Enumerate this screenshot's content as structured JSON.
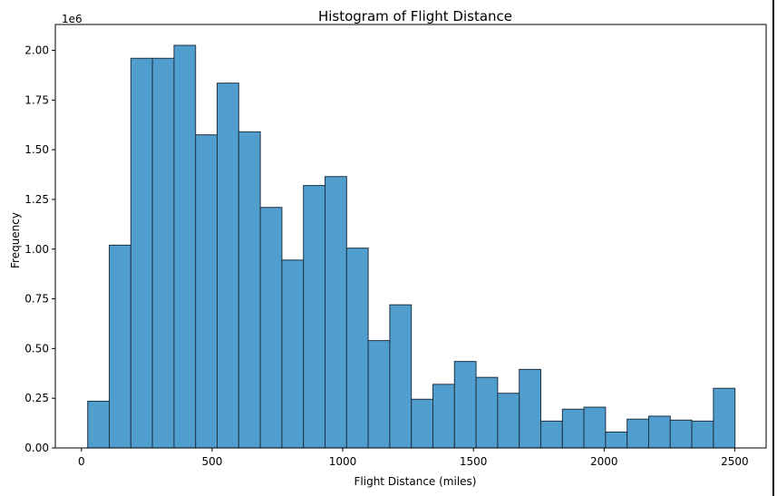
{
  "chart_data": {
    "type": "bar",
    "title": "Histogram of Flight Distance",
    "xlabel": "Flight Distance (miles)",
    "ylabel": "Frequency",
    "y_scale_label": "1e6",
    "xlim": [
      -100,
      2620
    ],
    "ylim": [
      0,
      2130000
    ],
    "x_ticks": [
      0,
      500,
      1000,
      1500,
      2000,
      2500
    ],
    "x_tick_labels": [
      "0",
      "500",
      "1000",
      "1500",
      "2000",
      "2500"
    ],
    "y_ticks": [
      0,
      250000,
      500000,
      750000,
      1000000,
      1250000,
      1500000,
      1750000,
      2000000
    ],
    "y_tick_labels": [
      "0.00",
      "0.25",
      "0.50",
      "0.75",
      "1.00",
      "1.25",
      "1.50",
      "1.75",
      "2.00"
    ],
    "bin_edges": [
      24,
      106.6,
      189.1,
      271.7,
      354.3,
      436.8,
      519.4,
      601.9,
      684.5,
      767.1,
      849.6,
      932.2,
      1014.8,
      1097.3,
      1179.9,
      1262.4,
      1345,
      1427.6,
      1510.1,
      1592.7,
      1675.3,
      1757.8,
      1840.4,
      1922.9,
      2005.5,
      2088.1,
      2170.6,
      2253.2,
      2335.7,
      2418.3,
      2500.9
    ],
    "values": [
      235000,
      1020000,
      1960000,
      1960000,
      2025000,
      1575000,
      1835000,
      1590000,
      1210000,
      945000,
      1320000,
      1365000,
      1005000,
      540000,
      720000,
      245000,
      320000,
      435000,
      355000,
      275000,
      395000,
      135000,
      195000,
      205000,
      80000,
      145000,
      160000,
      140000,
      135000,
      300000
    ],
    "bar_color": "#4f9ece",
    "edge_color": "#1f3344",
    "grid": false,
    "legend": false
  }
}
